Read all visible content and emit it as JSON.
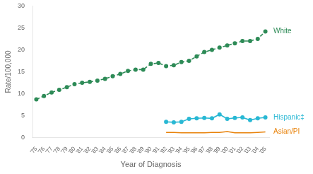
{
  "chart_data": {
    "type": "line",
    "xlabel": "Year of Diagnosis",
    "ylabel": "Rate/100,000",
    "x": [
      1975,
      1976,
      1977,
      1978,
      1979,
      1980,
      1981,
      1982,
      1983,
      1984,
      1985,
      1986,
      1987,
      1988,
      1989,
      1990,
      1991,
      1992,
      1993,
      1994,
      1995,
      1996,
      1997,
      1998,
      1999,
      2000,
      2001,
      2002,
      2003,
      2004,
      2005
    ],
    "series": [
      {
        "name": "White",
        "color": "#2e8b57",
        "marker": "circle",
        "line_style": "dashed",
        "values": [
          8.7,
          9.5,
          10.3,
          10.9,
          11.5,
          12.2,
          12.5,
          12.7,
          13.0,
          13.4,
          14.0,
          14.5,
          15.2,
          15.5,
          15.5,
          16.8,
          17.0,
          16.3,
          16.5,
          17.2,
          17.5,
          18.5,
          19.5,
          20.0,
          20.5,
          21.0,
          21.5,
          22.0,
          22.0,
          22.5,
          24.2
        ]
      },
      {
        "name": "Hispanic‡",
        "color": "#29b8d4",
        "marker": "circle",
        "line_style": "solid",
        "values": [
          null,
          null,
          null,
          null,
          null,
          null,
          null,
          null,
          null,
          null,
          null,
          null,
          null,
          null,
          null,
          null,
          null,
          3.6,
          3.5,
          3.6,
          4.3,
          4.4,
          4.5,
          4.4,
          5.3,
          4.3,
          4.5,
          4.6,
          4.0,
          4.4,
          4.6
        ]
      },
      {
        "name": "Asian/PI",
        "color": "#e8820a",
        "marker": "none",
        "line_style": "solid",
        "values": [
          null,
          null,
          null,
          null,
          null,
          null,
          null,
          null,
          null,
          null,
          null,
          null,
          null,
          null,
          null,
          null,
          null,
          1.2,
          1.2,
          1.1,
          1.1,
          1.1,
          1.1,
          1.2,
          1.2,
          1.4,
          1.1,
          1.1,
          1.1,
          1.2,
          1.3
        ]
      }
    ],
    "xlim": [
      1974.5,
      2005.5
    ],
    "xticks": [
      {
        "value": 1975,
        "label": "'75"
      },
      {
        "value": 1976,
        "label": "'76"
      },
      {
        "value": 1977,
        "label": "'77"
      },
      {
        "value": 1978,
        "label": "'78"
      },
      {
        "value": 1979,
        "label": "'79"
      },
      {
        "value": 1980,
        "label": "'80"
      },
      {
        "value": 1981,
        "label": "'81"
      },
      {
        "value": 1982,
        "label": "'82"
      },
      {
        "value": 1983,
        "label": "'83"
      },
      {
        "value": 1984,
        "label": "'84"
      },
      {
        "value": 1985,
        "label": "'85"
      },
      {
        "value": 1986,
        "label": "'86"
      },
      {
        "value": 1987,
        "label": "'87"
      },
      {
        "value": 1988,
        "label": "'88"
      },
      {
        "value": 1989,
        "label": "'89"
      },
      {
        "value": 1990,
        "label": "'90"
      },
      {
        "value": 1991,
        "label": "'91"
      },
      {
        "value": 1992,
        "label": "'92"
      },
      {
        "value": 1993,
        "label": "'93"
      },
      {
        "value": 1994,
        "label": "'94"
      },
      {
        "value": 1995,
        "label": "'95"
      },
      {
        "value": 1996,
        "label": "'96"
      },
      {
        "value": 1997,
        "label": "'97"
      },
      {
        "value": 1998,
        "label": "'98"
      },
      {
        "value": 1999,
        "label": "'99"
      },
      {
        "value": 2000,
        "label": "'00"
      },
      {
        "value": 2001,
        "label": "'01"
      },
      {
        "value": 2002,
        "label": "'02"
      },
      {
        "value": 2003,
        "label": "'03"
      },
      {
        "value": 2004,
        "label": "'04"
      },
      {
        "value": 2005,
        "label": "'05"
      }
    ],
    "ylim": [
      0,
      30
    ],
    "yticks": [
      0,
      5,
      10,
      15,
      20,
      25,
      30
    ],
    "grid": false
  }
}
